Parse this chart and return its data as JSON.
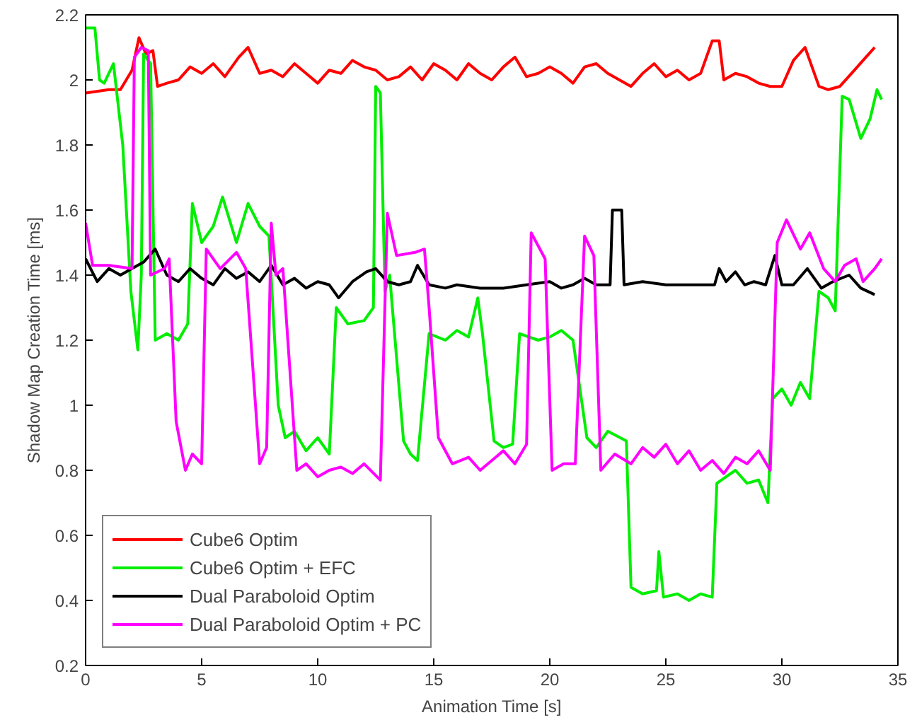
{
  "chart_data": {
    "type": "line",
    "xlabel": "Animation Time [s]",
    "ylabel": "Shadow Map Creation Time [ms]",
    "xlim": [
      0,
      35
    ],
    "ylim": [
      0.2,
      2.2
    ],
    "xticks": [
      0,
      5,
      10,
      15,
      20,
      25,
      30,
      35
    ],
    "yticks": [
      0.2,
      0.4,
      0.6,
      0.8,
      1,
      1.2,
      1.4,
      1.6,
      1.8,
      2,
      2.2
    ],
    "grid": false,
    "legend": "bottom left",
    "marker": "none",
    "line_style": "solid",
    "series": [
      {
        "name": "Cube6 Optim",
        "color": "#ff0000",
        "x": [
          0,
          1,
          1.5,
          2,
          2.3,
          2.6,
          2.9,
          3.1,
          3.5,
          4,
          4.5,
          5,
          5.5,
          6,
          6.6,
          7,
          7.5,
          8,
          8.5,
          9,
          9.5,
          10,
          10.5,
          11,
          11.5,
          12,
          12.5,
          13,
          13.5,
          14,
          14.5,
          15,
          15.5,
          16,
          16.5,
          17,
          17.5,
          18,
          18.5,
          19,
          19.5,
          20,
          20.5,
          21,
          21.5,
          22,
          22.5,
          23,
          23.5,
          24,
          24.5,
          25,
          25.5,
          26,
          26.5,
          27,
          27.3,
          27.5,
          28,
          28.5,
          29,
          29.5,
          30,
          30.5,
          31,
          31.3,
          31.6,
          32,
          32.5,
          33,
          33.5,
          34
        ],
        "values": [
          1.96,
          1.97,
          1.97,
          2.03,
          2.13,
          2.08,
          2.09,
          1.98,
          1.99,
          2.0,
          2.04,
          2.02,
          2.05,
          2.01,
          2.07,
          2.1,
          2.02,
          2.03,
          2.01,
          2.05,
          2.02,
          1.99,
          2.03,
          2.02,
          2.06,
          2.04,
          2.03,
          2.0,
          2.01,
          2.04,
          2.0,
          2.05,
          2.03,
          2.0,
          2.05,
          2.02,
          2.0,
          2.04,
          2.07,
          2.01,
          2.02,
          2.04,
          2.02,
          1.99,
          2.04,
          2.05,
          2.02,
          2.0,
          1.98,
          2.02,
          2.05,
          2.01,
          2.03,
          2.0,
          2.02,
          2.12,
          2.12,
          2.0,
          2.02,
          2.01,
          1.99,
          1.98,
          1.98,
          2.06,
          2.1,
          2.04,
          1.98,
          1.97,
          1.98,
          2.02,
          2.06,
          2.1
        ]
      },
      {
        "name": "Cube6 Optim + EFC",
        "color": "#00ee00",
        "x": [
          0,
          0.4,
          0.6,
          0.8,
          1.2,
          1.6,
          1.95,
          2.25,
          2.4,
          2.5,
          2.8,
          3.0,
          3.5,
          4.0,
          4.4,
          4.6,
          5.0,
          5.5,
          5.9,
          6.5,
          7.0,
          7.5,
          7.9,
          8.3,
          8.6,
          9.0,
          9.5,
          10.0,
          10.5,
          10.8,
          11.3,
          12.0,
          12.4,
          12.5,
          12.7,
          12.9,
          13.1,
          13.7,
          14.0,
          14.3,
          14.8,
          15.5,
          16.0,
          16.5,
          16.9,
          17.1,
          17.6,
          18.0,
          18.4,
          18.7,
          19.5,
          20.0,
          20.5,
          21.0,
          21.6,
          22.0,
          22.5,
          23.3,
          23.5,
          24.0,
          24.6,
          24.7,
          24.9,
          25.5,
          26.0,
          26.5,
          27.0,
          27.2,
          27.6,
          28.0,
          28.5,
          29.0,
          29.4,
          29.6,
          30.0,
          30.4,
          30.8,
          31.2,
          31.6,
          32.0,
          32.3,
          32.6,
          32.9,
          33.4,
          33.8,
          34.1,
          34.3
        ],
        "values": [
          2.16,
          2.16,
          2.0,
          1.99,
          2.05,
          1.8,
          1.35,
          1.17,
          1.4,
          2.08,
          2.05,
          1.2,
          1.22,
          1.2,
          1.25,
          1.62,
          1.5,
          1.55,
          1.64,
          1.5,
          1.62,
          1.55,
          1.52,
          1.0,
          0.9,
          0.92,
          0.86,
          0.9,
          0.85,
          1.3,
          1.25,
          1.26,
          1.3,
          1.98,
          1.96,
          1.35,
          1.4,
          0.89,
          0.85,
          0.83,
          1.22,
          1.2,
          1.23,
          1.21,
          1.33,
          1.22,
          0.89,
          0.87,
          0.88,
          1.22,
          1.2,
          1.21,
          1.23,
          1.2,
          0.9,
          0.87,
          0.92,
          0.89,
          0.44,
          0.42,
          0.43,
          0.55,
          0.41,
          0.42,
          0.4,
          0.42,
          0.41,
          0.76,
          0.78,
          0.8,
          0.76,
          0.77,
          0.7,
          1.02,
          1.05,
          1.0,
          1.07,
          1.02,
          1.35,
          1.33,
          1.29,
          1.95,
          1.94,
          1.82,
          1.88,
          1.97,
          1.94
        ]
      },
      {
        "name": "Dual Paraboloid Optim",
        "color": "#000000",
        "x": [
          0,
          0.5,
          1,
          1.5,
          2,
          2.5,
          3,
          3.5,
          4,
          4.5,
          5,
          5.5,
          6,
          6.5,
          7,
          7.5,
          8,
          8.5,
          9,
          9.5,
          10,
          10.5,
          10.9,
          11.5,
          12.1,
          12.5,
          13,
          13.5,
          14,
          14.3,
          14.8,
          15.5,
          16,
          17,
          18,
          19,
          20,
          20.5,
          21,
          21.5,
          22,
          22.6,
          22.7,
          23.1,
          23.2,
          24,
          25,
          26,
          27.1,
          27.3,
          27.6,
          28,
          28.4,
          28.8,
          29.3,
          29.7,
          30,
          30.5,
          31.1,
          31.7,
          32.2,
          32.9,
          33.4,
          34
        ],
        "values": [
          1.45,
          1.38,
          1.42,
          1.4,
          1.42,
          1.44,
          1.48,
          1.4,
          1.38,
          1.42,
          1.39,
          1.37,
          1.42,
          1.39,
          1.41,
          1.38,
          1.43,
          1.37,
          1.39,
          1.36,
          1.38,
          1.37,
          1.33,
          1.38,
          1.41,
          1.42,
          1.38,
          1.37,
          1.38,
          1.43,
          1.37,
          1.36,
          1.37,
          1.36,
          1.36,
          1.37,
          1.38,
          1.36,
          1.37,
          1.39,
          1.37,
          1.37,
          1.6,
          1.6,
          1.37,
          1.38,
          1.37,
          1.37,
          1.37,
          1.42,
          1.38,
          1.41,
          1.37,
          1.38,
          1.37,
          1.46,
          1.37,
          1.37,
          1.42,
          1.36,
          1.38,
          1.4,
          1.36,
          1.34
        ]
      },
      {
        "name": "Dual Paraboloid Optim + PC",
        "color": "#ff00ff",
        "x": [
          0,
          0.3,
          1,
          2,
          2.1,
          2.4,
          2.7,
          2.8,
          3.4,
          3.6,
          3.9,
          4.3,
          4.6,
          5.0,
          5.2,
          5.8,
          6.5,
          6.9,
          7.5,
          7.8,
          8.0,
          8.2,
          8.5,
          9.1,
          9.5,
          10.0,
          10.5,
          11.0,
          11.5,
          12.0,
          12.7,
          13.0,
          13.4,
          14.2,
          14.6,
          14.8,
          15.2,
          15.8,
          16.5,
          17.0,
          17.5,
          18.0,
          18.5,
          19.0,
          19.2,
          19.8,
          20.1,
          20.6,
          21.1,
          21.5,
          21.9,
          22.2,
          22.8,
          23.5,
          24.0,
          24.5,
          25.0,
          25.5,
          26.0,
          26.5,
          27.0,
          27.5,
          28.0,
          28.5,
          29.0,
          29.5,
          29.8,
          30.2,
          30.8,
          31.2,
          31.8,
          32.3,
          32.7,
          33.2,
          33.5,
          34,
          34.3
        ],
        "values": [
          1.56,
          1.43,
          1.43,
          1.42,
          2.07,
          2.1,
          2.09,
          1.4,
          1.42,
          1.45,
          0.95,
          0.8,
          0.85,
          0.82,
          1.48,
          1.42,
          1.47,
          1.42,
          0.82,
          0.87,
          1.56,
          1.4,
          1.42,
          0.8,
          0.82,
          0.78,
          0.8,
          0.81,
          0.79,
          0.82,
          0.77,
          1.59,
          1.46,
          1.47,
          1.48,
          1.3,
          0.9,
          0.82,
          0.84,
          0.8,
          0.83,
          0.86,
          0.82,
          0.88,
          1.53,
          1.45,
          0.8,
          0.82,
          0.82,
          1.52,
          1.46,
          0.8,
          0.85,
          0.82,
          0.87,
          0.84,
          0.88,
          0.82,
          0.86,
          0.8,
          0.83,
          0.79,
          0.84,
          0.82,
          0.86,
          0.8,
          1.5,
          1.57,
          1.48,
          1.53,
          1.42,
          1.38,
          1.43,
          1.45,
          1.38,
          1.42,
          1.45
        ]
      }
    ]
  }
}
